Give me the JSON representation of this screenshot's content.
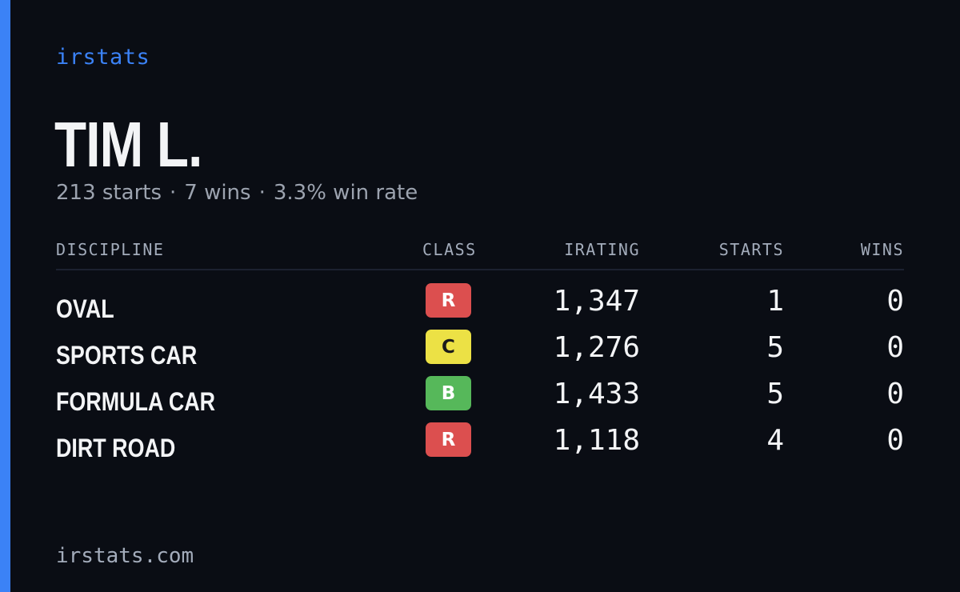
{
  "colors": {
    "background": "#0a0d14",
    "accent": "#3b82f6",
    "text_primary": "#f3f4f6",
    "text_muted": "#9ca3af",
    "header_text": "#a3acbb",
    "divider": "#1c2130",
    "class_R": "#dc4f4f",
    "class_C": "#ece145",
    "class_B": "#56b85a",
    "badge_text_light": "#ffffff",
    "badge_text_dark": "#1b1b1b"
  },
  "brand": "irstats",
  "player_name": "TIM L.",
  "summary": {
    "starts": "213 starts",
    "wins": "7 wins",
    "win_rate": "3.3% win rate",
    "separator": "·"
  },
  "table": {
    "headers": {
      "discipline": "DISCIPLINE",
      "class": "CLASS",
      "irating": "IRATING",
      "starts": "STARTS",
      "wins": "WINS"
    },
    "rows": [
      {
        "discipline": "OVAL",
        "class": "R",
        "irating": "1,347",
        "starts": "1",
        "wins": "0"
      },
      {
        "discipline": "SPORTS CAR",
        "class": "C",
        "irating": "1,276",
        "starts": "5",
        "wins": "0"
      },
      {
        "discipline": "FORMULA CAR",
        "class": "B",
        "irating": "1,433",
        "starts": "5",
        "wins": "0"
      },
      {
        "discipline": "DIRT ROAD",
        "class": "R",
        "irating": "1,118",
        "starts": "4",
        "wins": "0"
      }
    ]
  },
  "footer": "irstats.com"
}
